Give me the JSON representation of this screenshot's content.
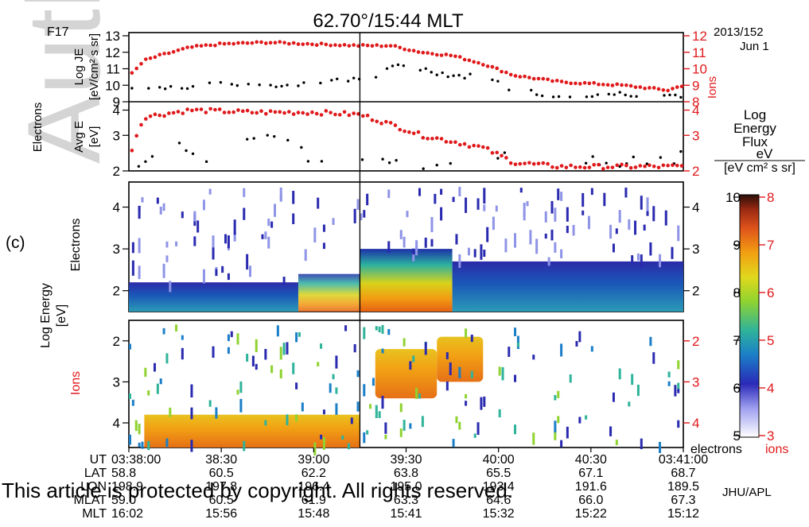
{
  "title": "62.70°/15:44 MLT",
  "satellite": "F17",
  "date": {
    "year_doy": "2013/152",
    "day": "Jun 1"
  },
  "panel_label": "(c)",
  "watermark_partial": "Auth",
  "copyright": "This article is protected by copyright. All rights reserved.",
  "institution": "JHU/APL",
  "colors": {
    "electrons": "#000000",
    "ions": "#e0191b"
  },
  "top_panel": {
    "group_label": "Electrons",
    "je_label": "Log JE",
    "je_units": "[eV/cm² s sr]",
    "avge_label": "Avg E",
    "avge_units": "[eV]",
    "right_group_label": "Ions",
    "je_left_ticks": [
      "13",
      "12",
      "11",
      "10",
      "9"
    ],
    "je_right_ticks": [
      "12",
      "11",
      "10",
      "9",
      "8"
    ],
    "avge_left_ticks": [
      "4",
      "3",
      "2"
    ],
    "avge_right_ticks": [
      "4",
      "3",
      "2"
    ]
  },
  "spec_panels": {
    "ylabel": "Log Energy",
    "yunits": "[eV]",
    "electrons_label": "Electrons",
    "ions_label": "Ions",
    "electron_ticks": [
      "4",
      "3",
      "2"
    ],
    "ion_ticks": [
      "2",
      "3",
      "4"
    ]
  },
  "colorbar": {
    "title_lines": [
      "Log",
      "Energy",
      "Flux",
      "eV"
    ],
    "units": "[eV cm² s sr]",
    "electron_ticks": [
      "10",
      "9",
      "8",
      "7",
      "6",
      "5"
    ],
    "ion_ticks": [
      "8",
      "7",
      "6",
      "5",
      "4",
      "3"
    ],
    "electron_label": "electrons",
    "ion_label": "ions"
  },
  "x_axis": {
    "row_labels": [
      "UT",
      "LAT",
      "LON",
      "MLAT",
      "MLT"
    ],
    "columns": [
      {
        "UT": "03:38:00",
        "LAT": "58.8",
        "LON": "198.9",
        "MLAT": "59.0",
        "MLT": "16:02"
      },
      {
        "UT": "38:30",
        "LAT": "60.5",
        "LON": "197.8",
        "MLAT": "60.5",
        "MLT": "15:56"
      },
      {
        "UT": "39:00",
        "LAT": "62.2",
        "LON": "196.4",
        "MLAT": "61.9",
        "MLT": "15:48"
      },
      {
        "UT": "39:30",
        "LAT": "63.8",
        "LON": "195.0",
        "MLAT": "63.3",
        "MLT": "15:41"
      },
      {
        "UT": "40:00",
        "LAT": "65.5",
        "LON": "193.4",
        "MLAT": "64.6",
        "MLT": "15:32"
      },
      {
        "UT": "40:30",
        "LAT": "67.1",
        "LON": "191.6",
        "MLAT": "66.0",
        "MLT": "15:22"
      },
      {
        "UT": "03:41:00",
        "LAT": "68.7",
        "LON": "189.5",
        "MLAT": "67.3",
        "MLT": "15:12"
      }
    ]
  },
  "chart_data": [
    {
      "type": "scatter",
      "title": "62.70°/15:44 MLT",
      "xlabel": "UT",
      "ylabel": "Log JE [eV/cm² s sr]",
      "x_range": [
        "03:38:00",
        "03:41:00"
      ],
      "marker_time": "03:39:15",
      "ylim_electrons": [
        9,
        13
      ],
      "ylim_ions": [
        8,
        12
      ],
      "series": [
        {
          "name": "Electrons",
          "color": "#000000",
          "points": [
            [
              "03:38:05",
              9.8
            ],
            [
              "03:38:40",
              10.1
            ],
            [
              "03:38:55",
              10.0
            ],
            [
              "03:39:00",
              10.3
            ],
            [
              "03:39:10",
              10.2
            ],
            [
              "03:39:20",
              10.6
            ],
            [
              "03:39:28",
              11.2
            ],
            [
              "03:39:35",
              11.0
            ],
            [
              "03:39:45",
              10.6
            ],
            [
              "03:39:55",
              10.5
            ],
            [
              "03:40:05",
              9.7
            ],
            [
              "03:40:20",
              9.4
            ],
            [
              "03:40:40",
              9.5
            ],
            [
              "03:40:55",
              9.4
            ]
          ]
        },
        {
          "name": "Ions",
          "color": "#e0191b",
          "points": [
            [
              "03:38:00",
              9.5
            ],
            [
              "03:38:05",
              10.5
            ],
            [
              "03:38:10",
              10.8
            ],
            [
              "03:38:20",
              11.3
            ],
            [
              "03:38:30",
              11.5
            ],
            [
              "03:38:45",
              11.6
            ],
            [
              "03:39:00",
              11.5
            ],
            [
              "03:39:15",
              11.4
            ],
            [
              "03:39:25",
              11.4
            ],
            [
              "03:39:35",
              11.0
            ],
            [
              "03:39:45",
              10.8
            ],
            [
              "03:39:55",
              10.3
            ],
            [
              "03:40:05",
              9.6
            ],
            [
              "03:40:20",
              9.2
            ],
            [
              "03:40:40",
              9.0
            ],
            [
              "03:40:55",
              8.7
            ],
            [
              "03:41:00",
              9.0
            ]
          ]
        }
      ]
    },
    {
      "type": "scatter",
      "ylabel": "Avg E [eV]",
      "ylim": [
        2,
        4.3
      ],
      "series": [
        {
          "name": "Electrons",
          "color": "#000000",
          "points": [
            [
              "03:38:03",
              2.0
            ],
            [
              "03:38:12",
              2.8
            ],
            [
              "03:38:30",
              2.1
            ],
            [
              "03:38:45",
              3.2
            ],
            [
              "03:39:00",
              2.3
            ],
            [
              "03:39:10",
              2.1
            ],
            [
              "03:39:30",
              2.1
            ],
            [
              "03:39:50",
              2.1
            ],
            [
              "03:40:00",
              2.3
            ],
            [
              "03:40:10",
              2.2
            ],
            [
              "03:40:30",
              2.2
            ],
            [
              "03:40:50",
              2.2
            ],
            [
              "03:41:00",
              2.4
            ]
          ]
        },
        {
          "name": "Ions",
          "color": "#e0191b",
          "points": [
            [
              "03:38:00",
              2.3
            ],
            [
              "03:38:05",
              3.7
            ],
            [
              "03:38:20",
              4.0
            ],
            [
              "03:38:40",
              3.9
            ],
            [
              "03:39:00",
              3.9
            ],
            [
              "03:39:15",
              3.8
            ],
            [
              "03:39:25",
              3.4
            ],
            [
              "03:39:35",
              3.0
            ],
            [
              "03:39:45",
              2.8
            ],
            [
              "03:39:55",
              2.6
            ],
            [
              "03:40:05",
              2.2
            ],
            [
              "03:40:20",
              2.1
            ],
            [
              "03:40:40",
              2.1
            ],
            [
              "03:40:55",
              2.1
            ]
          ]
        }
      ]
    },
    {
      "type": "heatmap",
      "name": "Electrons",
      "ylabel": "Log Energy [eV]",
      "ylim": [
        1.5,
        4.6
      ],
      "colorbar_range": [
        5,
        10
      ],
      "bands": [
        {
          "from": "03:38:00",
          "to": "03:38:55",
          "ymin": 1.5,
          "ymax": 2.2,
          "log_flux": 6.2
        },
        {
          "from": "03:38:55",
          "to": "03:39:15",
          "ymin": 1.5,
          "ymax": 2.4,
          "log_flux": 7.2
        },
        {
          "from": "03:39:15",
          "to": "03:39:45",
          "ymin": 1.5,
          "ymax": 3.0,
          "log_flux": 8.2
        },
        {
          "from": "03:39:45",
          "to": "03:41:00",
          "ymin": 1.5,
          "ymax": 2.7,
          "log_flux": 6.5
        }
      ]
    },
    {
      "type": "heatmap",
      "name": "Ions",
      "ylabel": "Log Energy [eV]",
      "ylim": [
        4.6,
        1.5
      ],
      "colorbar_range": [
        3,
        8
      ],
      "bands": [
        {
          "from": "03:38:05",
          "to": "03:39:15",
          "ymin": 3.8,
          "ymax": 4.6,
          "log_flux": 6.8
        },
        {
          "from": "03:39:20",
          "to": "03:39:40",
          "ymin": 2.2,
          "ymax": 3.4,
          "log_flux": 7.4
        },
        {
          "from": "03:39:40",
          "to": "03:39:55",
          "ymin": 1.9,
          "ymax": 3.0,
          "log_flux": 7.0
        }
      ]
    }
  ]
}
